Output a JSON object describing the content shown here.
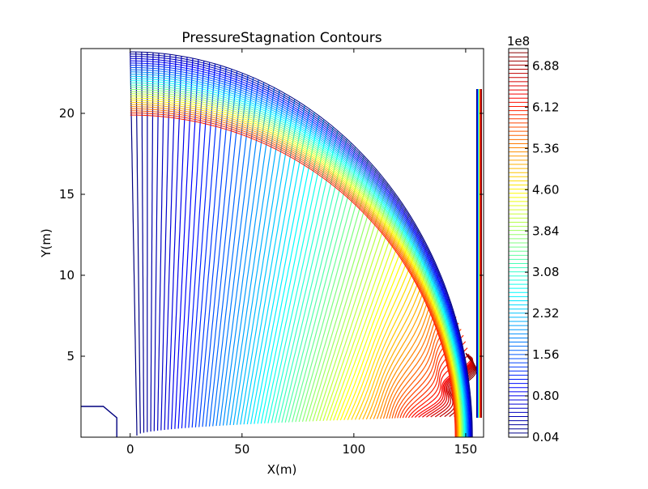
{
  "chart_data": {
    "type": "contour",
    "title": "PressureStagnation Contours",
    "xlabel": "X(m)",
    "ylabel": "Y(m)",
    "xlim": [
      -22,
      158
    ],
    "ylim": [
      0,
      24
    ],
    "x_ticks": [
      {
        "value": 0,
        "label": "0"
      },
      {
        "value": 50,
        "label": "50"
      },
      {
        "value": 100,
        "label": "100"
      },
      {
        "value": 150,
        "label": "150"
      }
    ],
    "y_ticks": [
      {
        "value": 5,
        "label": "5"
      },
      {
        "value": 10,
        "label": "10"
      },
      {
        "value": 15,
        "label": "15"
      },
      {
        "value": 20,
        "label": "20"
      }
    ],
    "colorbar": {
      "exponent_label": "1e8",
      "min": 0.04,
      "max": 7.2,
      "tick_values": [
        0.04,
        0.8,
        1.56,
        2.32,
        3.08,
        3.84,
        4.6,
        5.36,
        6.12,
        6.88
      ],
      "tick_labels": [
        "0.04",
        "0.80",
        "1.56",
        "2.32",
        "3.08",
        "3.84",
        "4.60",
        "5.36",
        "6.12",
        "6.88"
      ],
      "colormap": "jet",
      "level_count": 95
    },
    "body_outline": {
      "color": "#00007f",
      "x": [
        -22,
        -12,
        -6,
        -6
      ],
      "y": [
        1.9,
        1.9,
        1.2,
        0
      ]
    },
    "shock_boundary": {
      "start": [
        0,
        0
      ],
      "end": [
        153,
        23.8
      ],
      "shape": "quarter-ellipse"
    },
    "exit_plane_x": 155,
    "grid": false,
    "legend": "none"
  }
}
